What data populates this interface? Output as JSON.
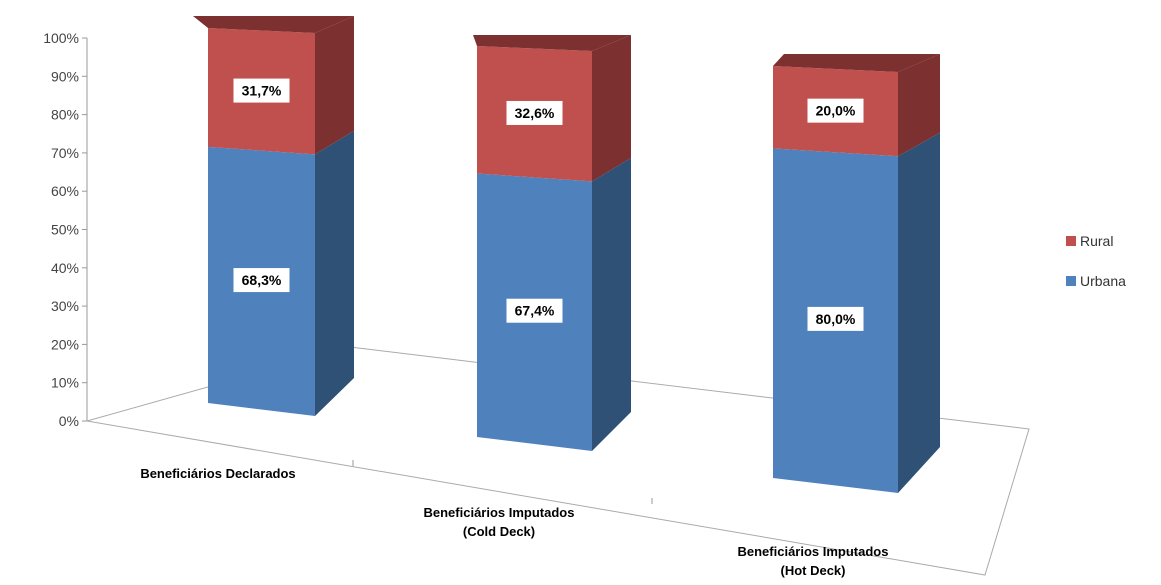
{
  "chart_data": {
    "type": "bar",
    "stacked": true,
    "percent_stacked": true,
    "three_d": true,
    "categories": [
      [
        "Beneficiários Declarados"
      ],
      [
        "Beneficiários Imputados",
        "(Cold Deck)"
      ],
      [
        "Beneficiários Imputados",
        "(Hot Deck)"
      ]
    ],
    "series": [
      {
        "name": "Urbana",
        "values": [
          68.3,
          67.4,
          80.0
        ],
        "labels": [
          "68,3%",
          "67,4%",
          "80,0%"
        ],
        "color": "#4F81BD",
        "side_color": "#2F5176"
      },
      {
        "name": "Rural",
        "values": [
          31.7,
          32.6,
          20.0
        ],
        "labels": [
          "31,7%",
          "32,6%",
          "20,0%"
        ],
        "color": "#C0504D",
        "side_color": "#7C302F"
      }
    ],
    "y_ticks": [
      "0%",
      "10%",
      "20%",
      "30%",
      "40%",
      "50%",
      "60%",
      "70%",
      "80%",
      "90%",
      "100%"
    ],
    "ylim": [
      0,
      100
    ],
    "grid": false,
    "legend_position": "right",
    "legend_order": [
      "Rural",
      "Urbana"
    ],
    "title": "",
    "xlabel": "",
    "ylabel": ""
  }
}
